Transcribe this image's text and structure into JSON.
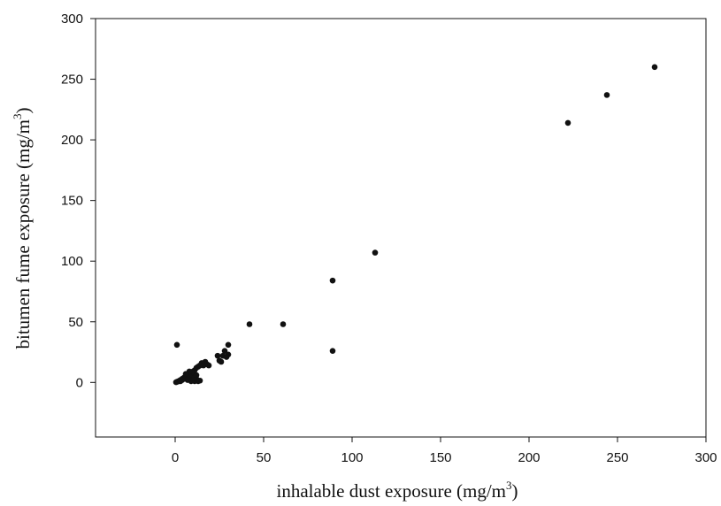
{
  "chart_data": {
    "type": "scatter",
    "title": "",
    "xlabel": {
      "before": "inhalable dust exposure (mg/m",
      "sup": "3",
      "after": ")"
    },
    "ylabel": {
      "before": "bitumen fume exposure (mg/m",
      "sup": "3",
      "after": ")"
    },
    "xlim": [
      -45,
      300
    ],
    "ylim": [
      -45,
      300
    ],
    "xticks": [
      0,
      50,
      100,
      150,
      200,
      250,
      300
    ],
    "yticks": [
      0,
      50,
      100,
      150,
      200,
      250,
      300
    ],
    "grid": false,
    "legend": "none",
    "marker_color": "#111111",
    "points": [
      [
        271,
        260
      ],
      [
        244,
        237
      ],
      [
        222,
        214
      ],
      [
        113,
        107
      ],
      [
        89,
        84
      ],
      [
        89,
        26
      ],
      [
        61,
        48
      ],
      [
        42,
        48
      ],
      [
        1,
        31
      ],
      [
        30,
        31
      ],
      [
        28,
        26
      ],
      [
        30,
        23
      ],
      [
        27,
        22
      ],
      [
        29,
        21
      ],
      [
        24,
        22
      ],
      [
        25,
        18
      ],
      [
        26,
        17
      ],
      [
        17,
        17
      ],
      [
        18,
        15
      ],
      [
        16,
        14
      ],
      [
        15,
        16
      ],
      [
        13,
        13
      ],
      [
        19,
        14
      ],
      [
        12,
        12
      ],
      [
        14,
        14
      ],
      [
        11,
        10
      ],
      [
        10,
        9
      ],
      [
        9,
        8
      ],
      [
        8,
        7
      ],
      [
        7,
        6
      ],
      [
        6,
        5
      ],
      [
        5,
        4
      ],
      [
        4,
        3
      ],
      [
        3,
        2
      ],
      [
        2,
        1
      ],
      [
        1,
        0.5
      ],
      [
        0.5,
        0.2
      ],
      [
        1.5,
        0.8
      ],
      [
        2.5,
        1.5
      ],
      [
        3.5,
        2.2
      ],
      [
        4.5,
        2.8
      ],
      [
        5.5,
        3.5
      ],
      [
        6.5,
        4.2
      ],
      [
        7.5,
        5.0
      ],
      [
        8.5,
        5.5
      ],
      [
        9.5,
        6.5
      ],
      [
        10,
        2
      ],
      [
        11,
        1
      ],
      [
        12,
        3
      ],
      [
        13,
        1
      ],
      [
        14,
        1.5
      ],
      [
        9,
        1
      ],
      [
        10.5,
        8
      ],
      [
        8,
        9
      ],
      [
        6,
        7
      ],
      [
        11,
        4
      ],
      [
        12,
        6
      ],
      [
        7,
        2
      ],
      [
        3,
        1
      ],
      [
        4,
        2
      ]
    ]
  }
}
